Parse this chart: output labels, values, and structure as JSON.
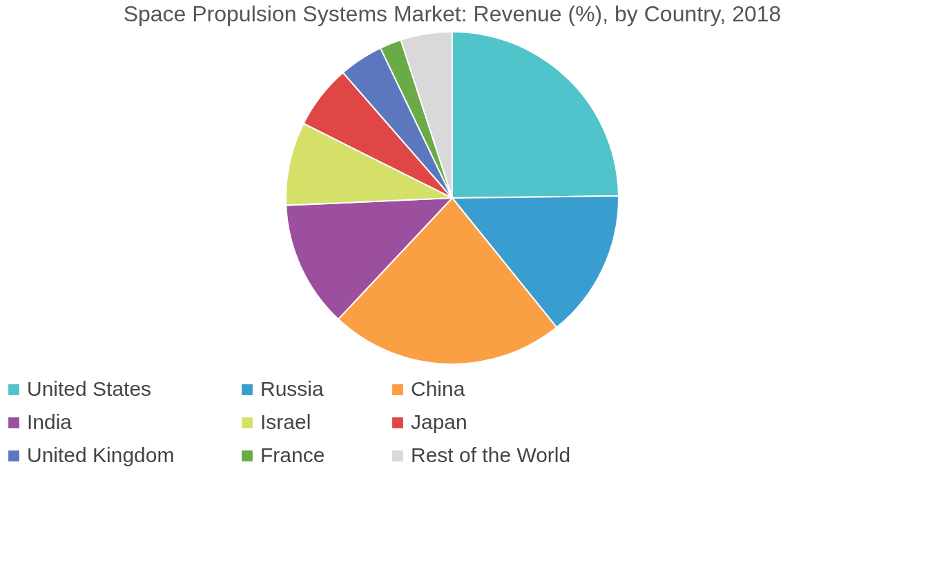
{
  "chart_data": {
    "type": "pie",
    "title": "Space Propulsion Systems Market: Revenue (%), by Country, 2018",
    "categories": [
      "United States",
      "Russia",
      "China",
      "India",
      "Israel",
      "Japan",
      "United Kingdom",
      "France",
      "Rest of the World"
    ],
    "values": [
      24.8,
      14.4,
      22.8,
      12.3,
      8.1,
      6.2,
      4.3,
      2.1,
      5.0
    ],
    "colors": [
      "#4fc4ca",
      "#3a9dd0",
      "#fb9f45",
      "#9b4f9e",
      "#d4e067",
      "#e04646",
      "#5b78bf",
      "#6aab47",
      "#d9d9d9"
    ],
    "legend": "bottom"
  }
}
